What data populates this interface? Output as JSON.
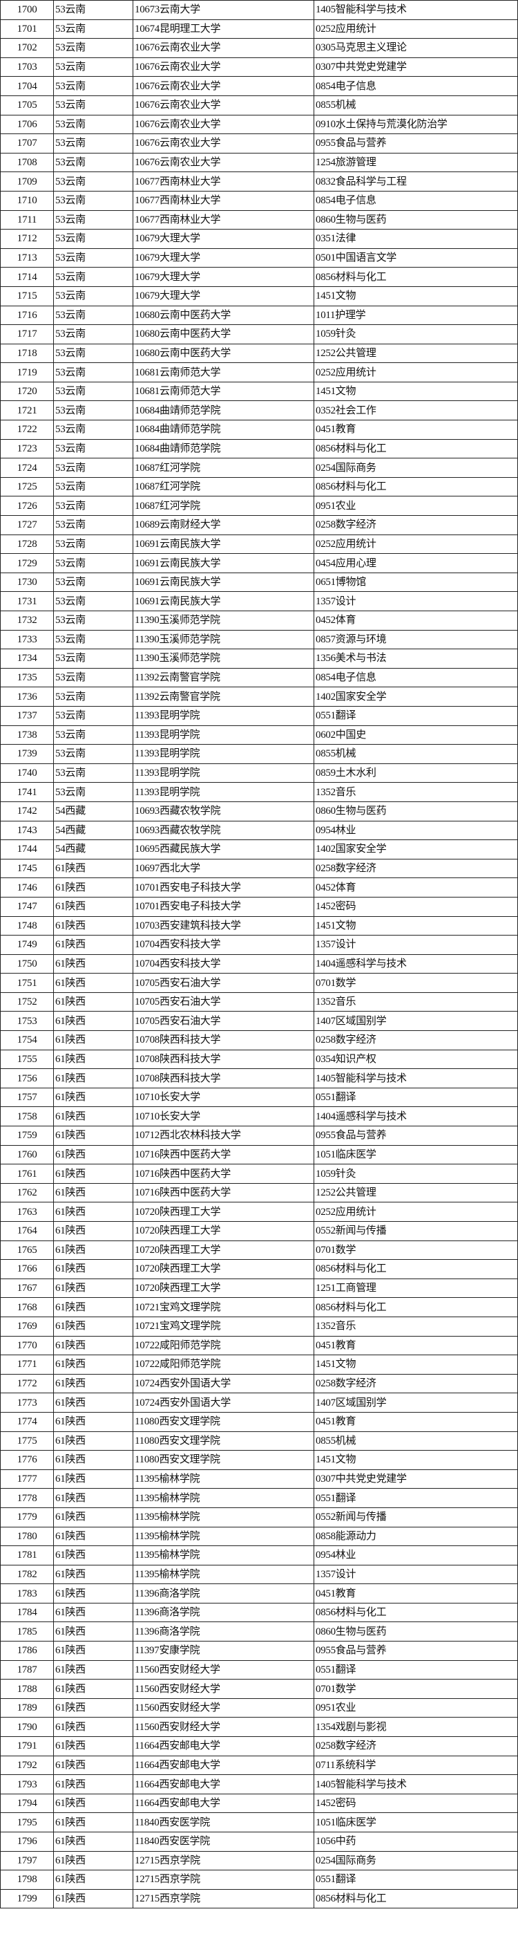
{
  "rows": [
    [
      "1700",
      "53云南",
      "10673云南大学",
      "1405智能科学与技术"
    ],
    [
      "1701",
      "53云南",
      "10674昆明理工大学",
      "0252应用统计"
    ],
    [
      "1702",
      "53云南",
      "10676云南农业大学",
      "0305马克思主义理论"
    ],
    [
      "1703",
      "53云南",
      "10676云南农业大学",
      "0307中共党史党建学"
    ],
    [
      "1704",
      "53云南",
      "10676云南农业大学",
      "0854电子信息"
    ],
    [
      "1705",
      "53云南",
      "10676云南农业大学",
      "0855机械"
    ],
    [
      "1706",
      "53云南",
      "10676云南农业大学",
      "0910水土保持与荒漠化防治学"
    ],
    [
      "1707",
      "53云南",
      "10676云南农业大学",
      "0955食品与营养"
    ],
    [
      "1708",
      "53云南",
      "10676云南农业大学",
      "1254旅游管理"
    ],
    [
      "1709",
      "53云南",
      "10677西南林业大学",
      "0832食品科学与工程"
    ],
    [
      "1710",
      "53云南",
      "10677西南林业大学",
      "0854电子信息"
    ],
    [
      "1711",
      "53云南",
      "10677西南林业大学",
      "0860生物与医药"
    ],
    [
      "1712",
      "53云南",
      "10679大理大学",
      "0351法律"
    ],
    [
      "1713",
      "53云南",
      "10679大理大学",
      "0501中国语言文学"
    ],
    [
      "1714",
      "53云南",
      "10679大理大学",
      "0856材料与化工"
    ],
    [
      "1715",
      "53云南",
      "10679大理大学",
      "1451文物"
    ],
    [
      "1716",
      "53云南",
      "10680云南中医药大学",
      "1011护理学"
    ],
    [
      "1717",
      "53云南",
      "10680云南中医药大学",
      "1059针灸"
    ],
    [
      "1718",
      "53云南",
      "10680云南中医药大学",
      "1252公共管理"
    ],
    [
      "1719",
      "53云南",
      "10681云南师范大学",
      "0252应用统计"
    ],
    [
      "1720",
      "53云南",
      "10681云南师范大学",
      "1451文物"
    ],
    [
      "1721",
      "53云南",
      "10684曲靖师范学院",
      "0352社会工作"
    ],
    [
      "1722",
      "53云南",
      "10684曲靖师范学院",
      "0451教育"
    ],
    [
      "1723",
      "53云南",
      "10684曲靖师范学院",
      "0856材料与化工"
    ],
    [
      "1724",
      "53云南",
      "10687红河学院",
      "0254国际商务"
    ],
    [
      "1725",
      "53云南",
      "10687红河学院",
      "0856材料与化工"
    ],
    [
      "1726",
      "53云南",
      "10687红河学院",
      "0951农业"
    ],
    [
      "1727",
      "53云南",
      "10689云南财经大学",
      "0258数字经济"
    ],
    [
      "1728",
      "53云南",
      "10691云南民族大学",
      "0252应用统计"
    ],
    [
      "1729",
      "53云南",
      "10691云南民族大学",
      "0454应用心理"
    ],
    [
      "1730",
      "53云南",
      "10691云南民族大学",
      "0651博物馆"
    ],
    [
      "1731",
      "53云南",
      "10691云南民族大学",
      "1357设计"
    ],
    [
      "1732",
      "53云南",
      "11390玉溪师范学院",
      "0452体育"
    ],
    [
      "1733",
      "53云南",
      "11390玉溪师范学院",
      "0857资源与环境"
    ],
    [
      "1734",
      "53云南",
      "11390玉溪师范学院",
      "1356美术与书法"
    ],
    [
      "1735",
      "53云南",
      "11392云南警官学院",
      "0854电子信息"
    ],
    [
      "1736",
      "53云南",
      "11392云南警官学院",
      "1402国家安全学"
    ],
    [
      "1737",
      "53云南",
      "11393昆明学院",
      "0551翻译"
    ],
    [
      "1738",
      "53云南",
      "11393昆明学院",
      "0602中国史"
    ],
    [
      "1739",
      "53云南",
      "11393昆明学院",
      "0855机械"
    ],
    [
      "1740",
      "53云南",
      "11393昆明学院",
      "0859土木水利"
    ],
    [
      "1741",
      "53云南",
      "11393昆明学院",
      "1352音乐"
    ],
    [
      "1742",
      "54西藏",
      "10693西藏农牧学院",
      "0860生物与医药"
    ],
    [
      "1743",
      "54西藏",
      "10693西藏农牧学院",
      "0954林业"
    ],
    [
      "1744",
      "54西藏",
      "10695西藏民族大学",
      "1402国家安全学"
    ],
    [
      "1745",
      "61陕西",
      "10697西北大学",
      "0258数字经济"
    ],
    [
      "1746",
      "61陕西",
      "10701西安电子科技大学",
      "0452体育"
    ],
    [
      "1747",
      "61陕西",
      "10701西安电子科技大学",
      "1452密码"
    ],
    [
      "1748",
      "61陕西",
      "10703西安建筑科技大学",
      "1451文物"
    ],
    [
      "1749",
      "61陕西",
      "10704西安科技大学",
      "1357设计"
    ],
    [
      "1750",
      "61陕西",
      "10704西安科技大学",
      "1404遥感科学与技术"
    ],
    [
      "1751",
      "61陕西",
      "10705西安石油大学",
      "0701数学"
    ],
    [
      "1752",
      "61陕西",
      "10705西安石油大学",
      "1352音乐"
    ],
    [
      "1753",
      "61陕西",
      "10705西安石油大学",
      "1407区域国别学"
    ],
    [
      "1754",
      "61陕西",
      "10708陕西科技大学",
      "0258数字经济"
    ],
    [
      "1755",
      "61陕西",
      "10708陕西科技大学",
      "0354知识产权"
    ],
    [
      "1756",
      "61陕西",
      "10708陕西科技大学",
      "1405智能科学与技术"
    ],
    [
      "1757",
      "61陕西",
      "10710长安大学",
      "0551翻译"
    ],
    [
      "1758",
      "61陕西",
      "10710长安大学",
      "1404遥感科学与技术"
    ],
    [
      "1759",
      "61陕西",
      "10712西北农林科技大学",
      "0955食品与营养"
    ],
    [
      "1760",
      "61陕西",
      "10716陕西中医药大学",
      "1051临床医学"
    ],
    [
      "1761",
      "61陕西",
      "10716陕西中医药大学",
      "1059针灸"
    ],
    [
      "1762",
      "61陕西",
      "10716陕西中医药大学",
      "1252公共管理"
    ],
    [
      "1763",
      "61陕西",
      "10720陕西理工大学",
      "0252应用统计"
    ],
    [
      "1764",
      "61陕西",
      "10720陕西理工大学",
      "0552新闻与传播"
    ],
    [
      "1765",
      "61陕西",
      "10720陕西理工大学",
      "0701数学"
    ],
    [
      "1766",
      "61陕西",
      "10720陕西理工大学",
      "0856材料与化工"
    ],
    [
      "1767",
      "61陕西",
      "10720陕西理工大学",
      "1251工商管理"
    ],
    [
      "1768",
      "61陕西",
      "10721宝鸡文理学院",
      "0856材料与化工"
    ],
    [
      "1769",
      "61陕西",
      "10721宝鸡文理学院",
      "1352音乐"
    ],
    [
      "1770",
      "61陕西",
      "10722咸阳师范学院",
      "0451教育"
    ],
    [
      "1771",
      "61陕西",
      "10722咸阳师范学院",
      "1451文物"
    ],
    [
      "1772",
      "61陕西",
      "10724西安外国语大学",
      "0258数字经济"
    ],
    [
      "1773",
      "61陕西",
      "10724西安外国语大学",
      "1407区域国别学"
    ],
    [
      "1774",
      "61陕西",
      "11080西安文理学院",
      "0451教育"
    ],
    [
      "1775",
      "61陕西",
      "11080西安文理学院",
      "0855机械"
    ],
    [
      "1776",
      "61陕西",
      "11080西安文理学院",
      "1451文物"
    ],
    [
      "1777",
      "61陕西",
      "11395榆林学院",
      "0307中共党史党建学"
    ],
    [
      "1778",
      "61陕西",
      "11395榆林学院",
      "0551翻译"
    ],
    [
      "1779",
      "61陕西",
      "11395榆林学院",
      "0552新闻与传播"
    ],
    [
      "1780",
      "61陕西",
      "11395榆林学院",
      "0858能源动力"
    ],
    [
      "1781",
      "61陕西",
      "11395榆林学院",
      "0954林业"
    ],
    [
      "1782",
      "61陕西",
      "11395榆林学院",
      "1357设计"
    ],
    [
      "1783",
      "61陕西",
      "11396商洛学院",
      "0451教育"
    ],
    [
      "1784",
      "61陕西",
      "11396商洛学院",
      "0856材料与化工"
    ],
    [
      "1785",
      "61陕西",
      "11396商洛学院",
      "0860生物与医药"
    ],
    [
      "1786",
      "61陕西",
      "11397安康学院",
      "0955食品与营养"
    ],
    [
      "1787",
      "61陕西",
      "11560西安财经大学",
      "0551翻译"
    ],
    [
      "1788",
      "61陕西",
      "11560西安财经大学",
      "0701数学"
    ],
    [
      "1789",
      "61陕西",
      "11560西安财经大学",
      "0951农业"
    ],
    [
      "1790",
      "61陕西",
      "11560西安财经大学",
      "1354戏剧与影视"
    ],
    [
      "1791",
      "61陕西",
      "11664西安邮电大学",
      "0258数字经济"
    ],
    [
      "1792",
      "61陕西",
      "11664西安邮电大学",
      "0711系统科学"
    ],
    [
      "1793",
      "61陕西",
      "11664西安邮电大学",
      "1405智能科学与技术"
    ],
    [
      "1794",
      "61陕西",
      "11664西安邮电大学",
      "1452密码"
    ],
    [
      "1795",
      "61陕西",
      "11840西安医学院",
      "1051临床医学"
    ],
    [
      "1796",
      "61陕西",
      "11840西安医学院",
      "1056中药"
    ],
    [
      "1797",
      "61陕西",
      "12715西京学院",
      "0254国际商务"
    ],
    [
      "1798",
      "61陕西",
      "12715西京学院",
      "0551翻译"
    ],
    [
      "1799",
      "61陕西",
      "12715西京学院",
      "0856材料与化工"
    ]
  ]
}
